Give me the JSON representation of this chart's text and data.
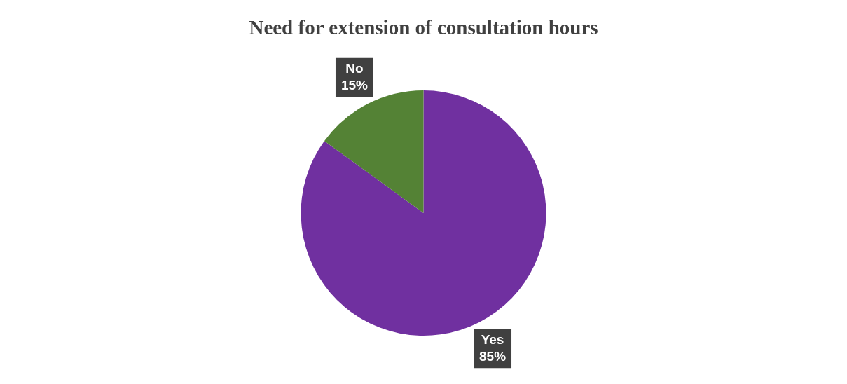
{
  "chart_data": {
    "type": "pie",
    "title": "Need for extension of  consultation hours",
    "categories": [
      "Yes",
      "No"
    ],
    "values": [
      85,
      15
    ],
    "colors": [
      "#7030a0",
      "#548235"
    ],
    "value_labels": [
      "85%",
      "15%"
    ],
    "legend": false
  }
}
